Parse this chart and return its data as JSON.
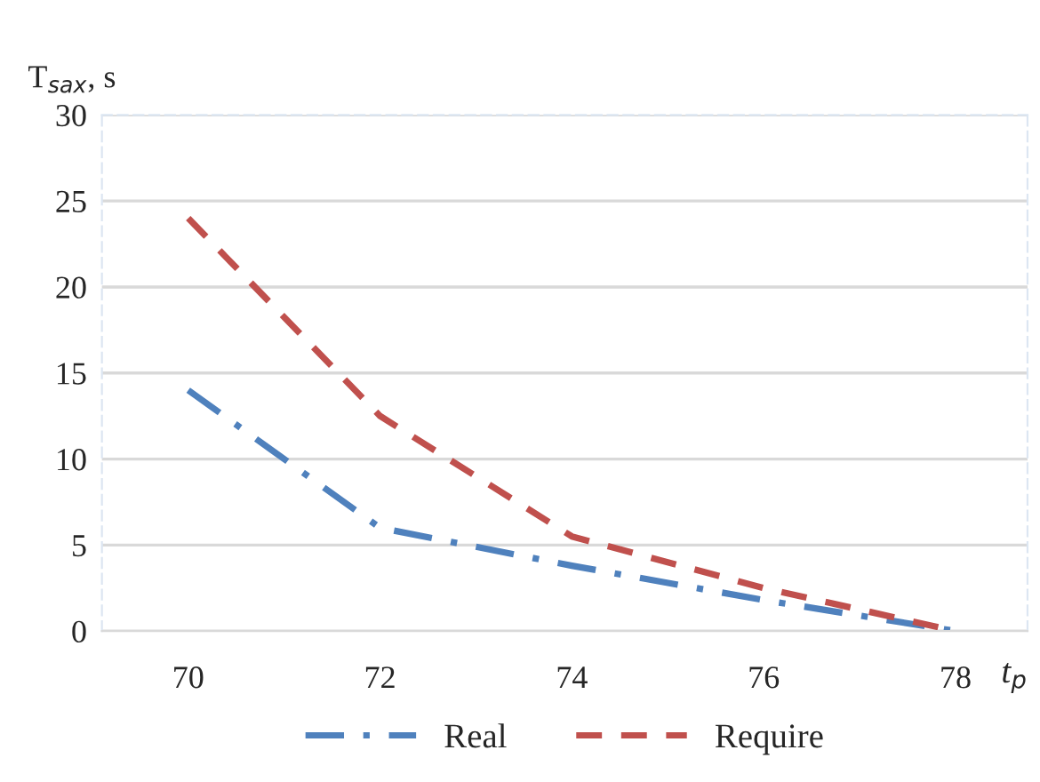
{
  "chart_data": {
    "type": "line",
    "ylabel": "T$_{sax}$, s",
    "xlabel": "t$_{p}$",
    "x": [
      70,
      72,
      74,
      76,
      78
    ],
    "xlim": [
      69.1,
      78.75
    ],
    "xticks": [
      70,
      72,
      74,
      76,
      78
    ],
    "ylim": [
      0,
      30
    ],
    "yticks": [
      0,
      5,
      10,
      15,
      20,
      25,
      30
    ],
    "grid": "y",
    "legend": "bottom",
    "marker": "none",
    "series": [
      {
        "name": "Real",
        "color": "#4f81bd",
        "line_style": "dashdot",
        "values": [
          14,
          6,
          3.8,
          1.8,
          0
        ]
      },
      {
        "name": "Require",
        "color": "#c0504d",
        "line_style": "dashed",
        "values": [
          24,
          12.5,
          5.5,
          2.5,
          0
        ]
      }
    ]
  }
}
